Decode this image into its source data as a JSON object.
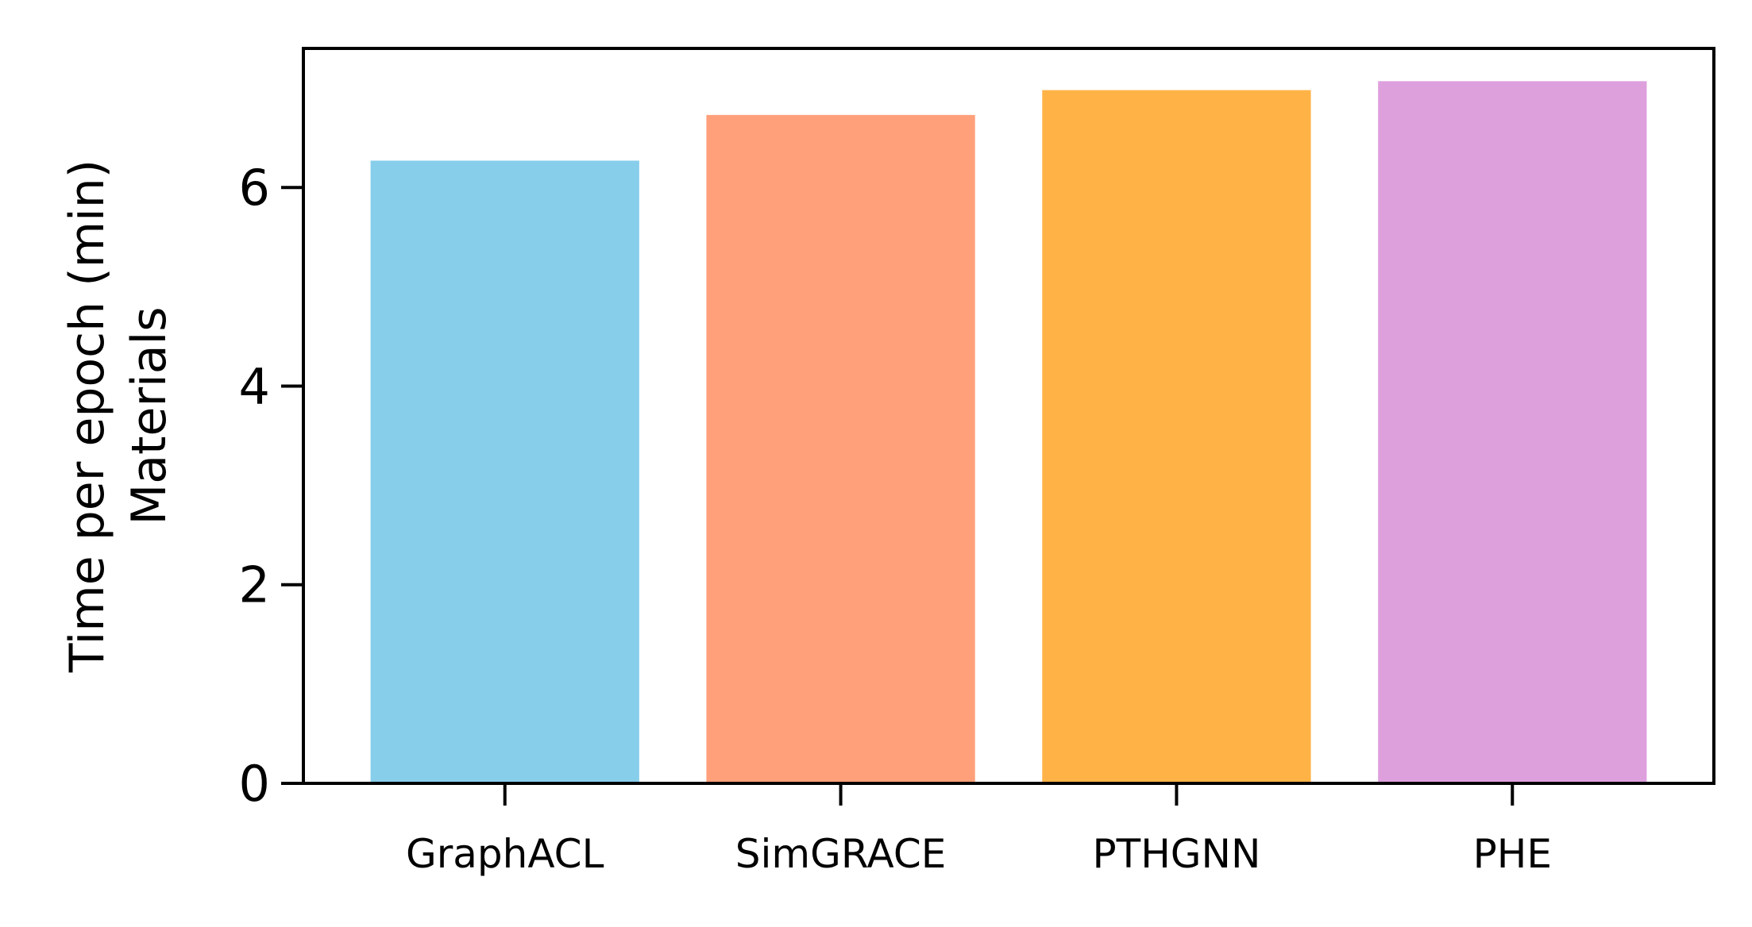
{
  "chart_data": {
    "type": "bar",
    "categories": [
      "GraphACL",
      "SimGRACE",
      "PTHGNN",
      "PHE"
    ],
    "values": [
      6.27,
      6.73,
      6.98,
      7.07
    ],
    "colors": [
      "#87CEEB",
      "#FFA07A",
      "#FFB347",
      "#DDA0DD"
    ],
    "title": "",
    "xlabel": "",
    "ylabel": "Time per epoch (min)\nMaterials",
    "ylabel_lines": [
      "Time per epoch (min)",
      "Materials"
    ],
    "ylim": [
      0,
      7.4
    ],
    "yticks": [
      0,
      2,
      4,
      6
    ],
    "grid": false
  }
}
